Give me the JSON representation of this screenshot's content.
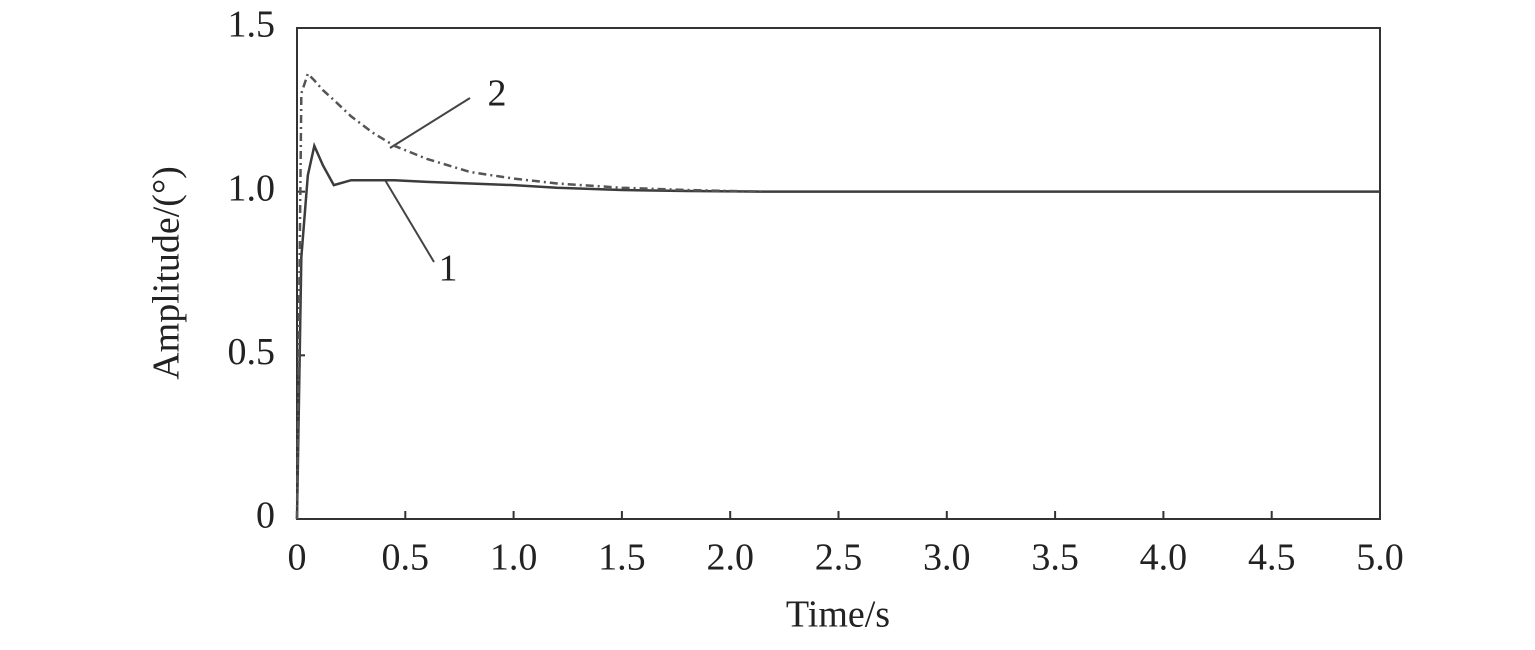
{
  "chart_data": {
    "type": "line",
    "xlabel": "Time/s",
    "ylabel": "Amplitude/(°)",
    "x": [
      0,
      0.02,
      0.05,
      0.08,
      0.12,
      0.17,
      0.25,
      0.35,
      0.45,
      0.6,
      0.8,
      1.0,
      1.2,
      1.5,
      1.8,
      2.15,
      3,
      4,
      5
    ],
    "series": [
      {
        "name": "1",
        "color": "#3c3c3c",
        "dash": false,
        "values": [
          0,
          0.8,
          1.05,
          1.14,
          1.08,
          1.02,
          1.035,
          1.035,
          1.035,
          1.03,
          1.025,
          1.02,
          1.012,
          1.005,
          1.002,
          1.0,
          1.0,
          1.0,
          1.0
        ]
      },
      {
        "name": "2",
        "color": "#555555",
        "dash": true,
        "values": [
          0,
          1.3,
          1.36,
          1.34,
          1.31,
          1.28,
          1.23,
          1.18,
          1.14,
          1.1,
          1.06,
          1.04,
          1.025,
          1.012,
          1.005,
          1.0,
          null,
          null,
          null
        ]
      }
    ],
    "xlim": [
      0,
      5
    ],
    "xticks": [
      0,
      0.5,
      {
        "value": 1,
        "label": "1.0"
      },
      1.5,
      {
        "value": 2,
        "label": "2.0"
      },
      2.5,
      {
        "value": 3,
        "label": "3.0"
      },
      3.5,
      {
        "value": 4,
        "label": "4.0"
      },
      4.5,
      {
        "value": 5,
        "label": "5.0"
      }
    ],
    "ylim": [
      0,
      1.5
    ],
    "yticks": [
      0,
      0.5,
      {
        "value": 1,
        "label": "1.0"
      },
      1.5
    ],
    "grid": false
  }
}
